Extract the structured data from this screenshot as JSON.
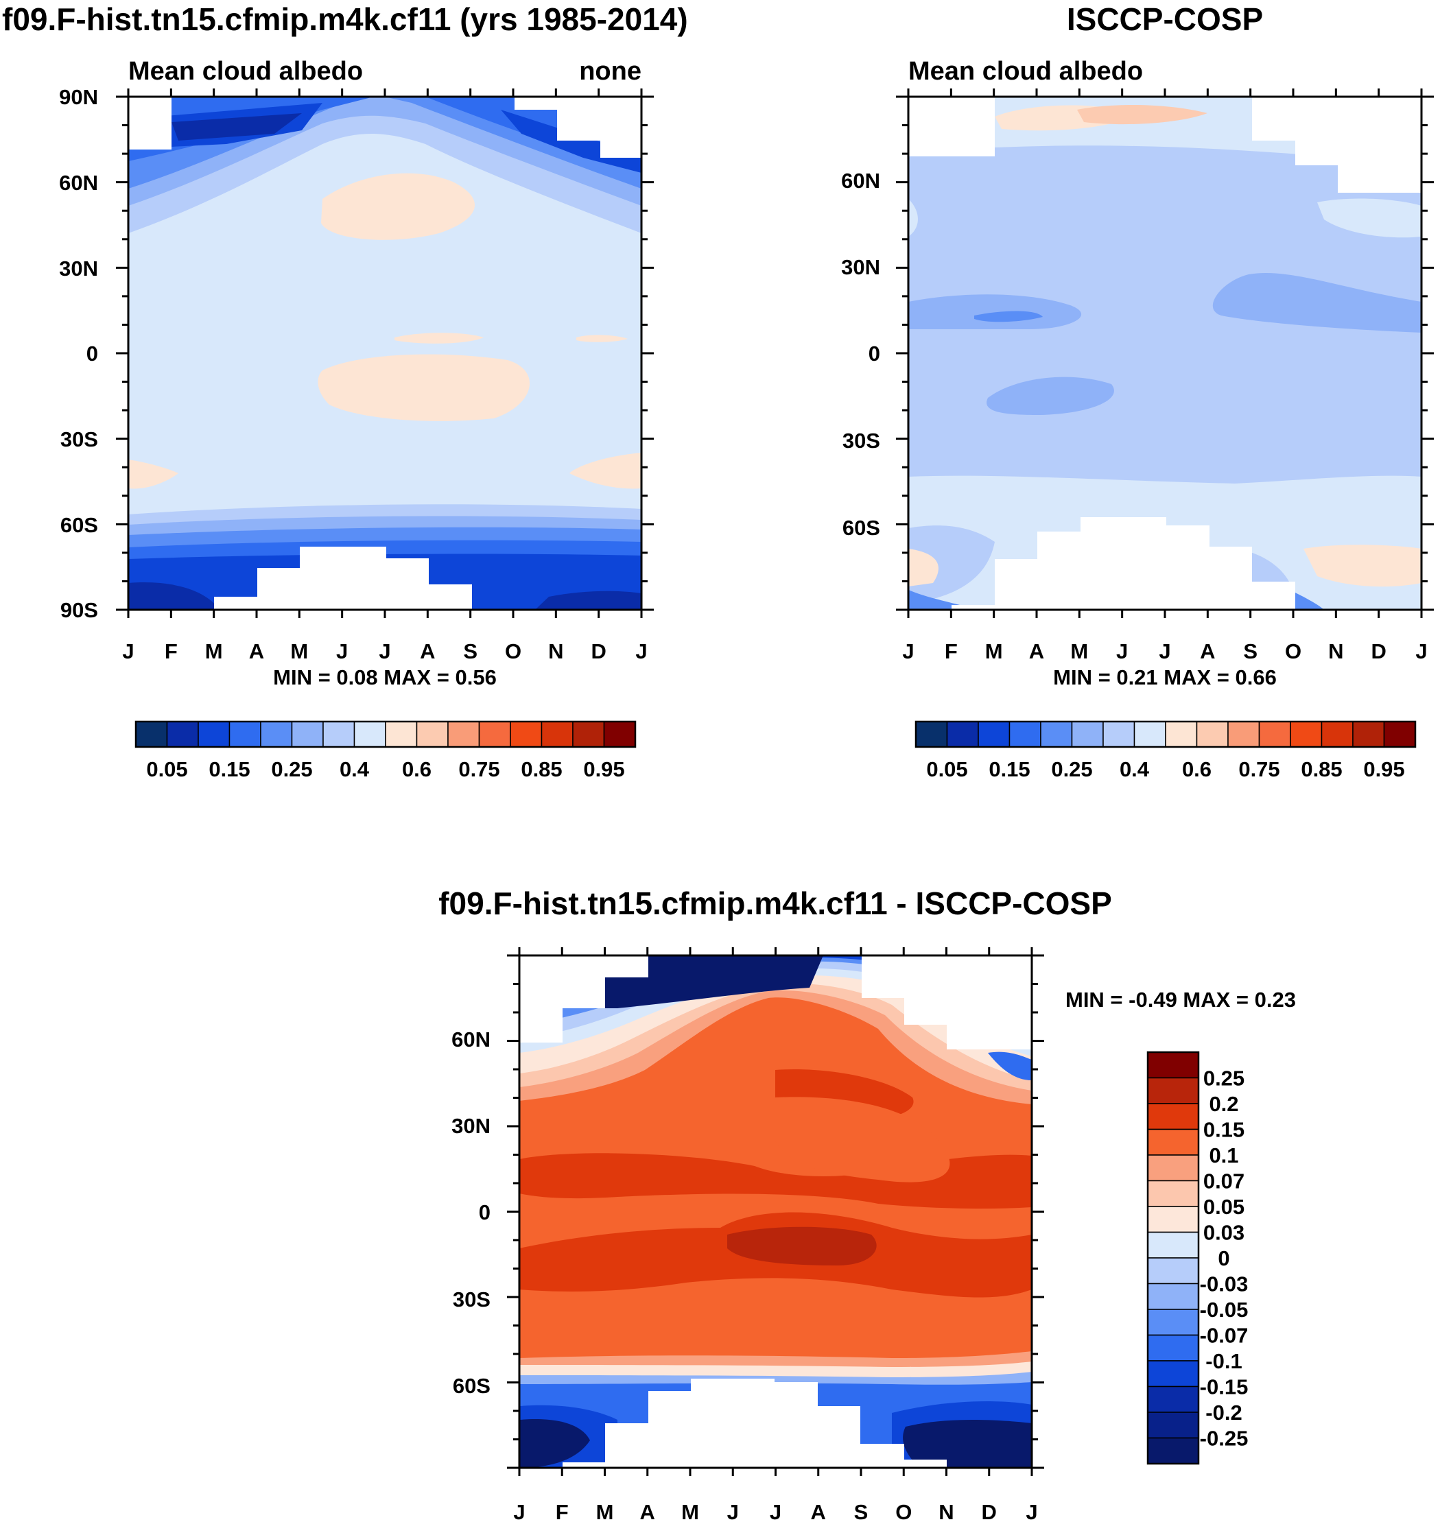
{
  "panels": [
    {
      "id": "model",
      "title": "f09.F-hist.tn15.cfmip.m4k.cf11 (yrs 1985-2014)",
      "left_label": "Mean cloud albedo",
      "right_label": "none",
      "min_max_label": "MIN =   0.08 MAX =   0.56",
      "month_labels": [
        "J",
        "F",
        "M",
        "A",
        "M",
        "J",
        "J",
        "A",
        "S",
        "O",
        "N",
        "D",
        "J"
      ],
      "lat_labels": [
        "90N",
        "60N",
        "30N",
        "0",
        "30S",
        "60S",
        "90S"
      ]
    },
    {
      "id": "obs",
      "title": "ISCCP-COSP",
      "left_label": "Mean cloud albedo",
      "min_max_label": "MIN =   0.21 MAX =   0.66",
      "month_labels": [
        "J",
        "F",
        "M",
        "A",
        "M",
        "J",
        "J",
        "A",
        "S",
        "O",
        "N",
        "D",
        "J"
      ],
      "lat_labels": [
        "60N",
        "30N",
        "0",
        "30S",
        "60S"
      ]
    },
    {
      "id": "diff",
      "title": "f09.F-hist.tn15.cfmip.m4k.cf11 - ISCCP-COSP",
      "min_max_label": "MIN =  -0.49 MAX =   0.23",
      "month_labels": [
        "J",
        "F",
        "M",
        "A",
        "M",
        "J",
        "J",
        "A",
        "S",
        "O",
        "N",
        "D",
        "J"
      ],
      "lat_labels": [
        "60N",
        "30N",
        "0",
        "30S",
        "60S"
      ]
    }
  ],
  "colorbar_abs": {
    "labels": [
      "0.05",
      "0.15",
      "0.25",
      "0.4",
      "0.6",
      "0.75",
      "0.85",
      "0.95"
    ],
    "colors": [
      "#08306b",
      "#0a2ca8",
      "#0d45d8",
      "#2f6cf0",
      "#5a8ef6",
      "#8fb2f8",
      "#b6cdfa",
      "#d8e8fb",
      "#fde5d4",
      "#fccbb1",
      "#f99c78",
      "#f56a3e",
      "#f04a15",
      "#d8340a",
      "#b02208",
      "#800000"
    ]
  },
  "colorbar_diff": {
    "labels": [
      "0.25",
      "0.2",
      "0.15",
      "0.1",
      "0.07",
      "0.05",
      "0.03",
      "0",
      "-0.03",
      "-0.05",
      "-0.07",
      "-0.1",
      "-0.15",
      "-0.2",
      "-0.25"
    ],
    "colors": [
      "#800000",
      "#b8250b",
      "#e0390c",
      "#f5642e",
      "#f9a07e",
      "#fcc7ae",
      "#fde7da",
      "#d8e8fb",
      "#b6cdfa",
      "#8fb2f8",
      "#5a8ef6",
      "#2f6cf0",
      "#0d45d8",
      "#0a2ca8",
      "#08218a",
      "#08196b"
    ]
  },
  "chart_data": [
    {
      "type": "heatmap",
      "title": "f09.F-hist.tn15.cfmip.m4k.cf11 (yrs 1985-2014)",
      "variable": "Mean cloud albedo",
      "xlabel": "month",
      "ylabel": "latitude",
      "x": [
        "J",
        "F",
        "M",
        "A",
        "M",
        "J",
        "J",
        "A",
        "S",
        "O",
        "N",
        "D",
        "J"
      ],
      "ylim": [
        -90,
        90
      ],
      "min": 0.08,
      "max": 0.56,
      "summary": [
        {
          "lat_band": "90N-70N",
          "value": 0.15
        },
        {
          "lat_band": "70N-45N",
          "value": 0.3
        },
        {
          "lat_band": "60N-40N, May-Aug",
          "value": 0.55
        },
        {
          "lat_band": "45N-55S",
          "value": 0.45
        },
        {
          "lat_band": "5S-25S, Jun-Sep",
          "value": 0.55
        },
        {
          "lat_band": "55S-65S",
          "value": 0.3
        },
        {
          "lat_band": "65S-90S",
          "value": 0.12
        }
      ]
    },
    {
      "type": "heatmap",
      "title": "ISCCP-COSP",
      "variable": "Mean cloud albedo",
      "xlabel": "month",
      "ylabel": "latitude",
      "x": [
        "J",
        "F",
        "M",
        "A",
        "M",
        "J",
        "J",
        "A",
        "S",
        "O",
        "N",
        "D",
        "J"
      ],
      "ylim": [
        -90,
        90
      ],
      "min": 0.21,
      "max": 0.66,
      "summary": [
        {
          "lat_band": "80N-70N, Mar-Aug",
          "value": 0.6
        },
        {
          "lat_band": "70N-50N",
          "value": 0.45
        },
        {
          "lat_band": "50N-50S",
          "value": 0.3
        },
        {
          "lat_band": "10N-15N, Jan-Mar",
          "value": 0.2
        },
        {
          "lat_band": "50S-70S",
          "value": 0.4
        },
        {
          "lat_band": "70S-80S, Jan & Oct-Dec",
          "value": 0.6
        }
      ]
    },
    {
      "type": "heatmap",
      "title": "f09.F-hist.tn15.cfmip.m4k.cf11 - ISCCP-COSP",
      "variable": "difference",
      "xlabel": "month",
      "ylabel": "latitude",
      "x": [
        "J",
        "F",
        "M",
        "A",
        "M",
        "J",
        "J",
        "A",
        "S",
        "O",
        "N",
        "D",
        "J"
      ],
      "ylim": [
        -90,
        90
      ],
      "min": -0.49,
      "max": 0.23,
      "summary": [
        {
          "lat_band": "80N-60N",
          "value": -0.25
        },
        {
          "lat_band": "60N-40N",
          "value": 0.05
        },
        {
          "lat_band": "40N-35S",
          "value": 0.15
        },
        {
          "lat_band": "10S-15S, Jun-Aug",
          "value": 0.2
        },
        {
          "lat_band": "45S-55S",
          "value": 0.0
        },
        {
          "lat_band": "55S-80S",
          "value": -0.25
        }
      ]
    }
  ]
}
